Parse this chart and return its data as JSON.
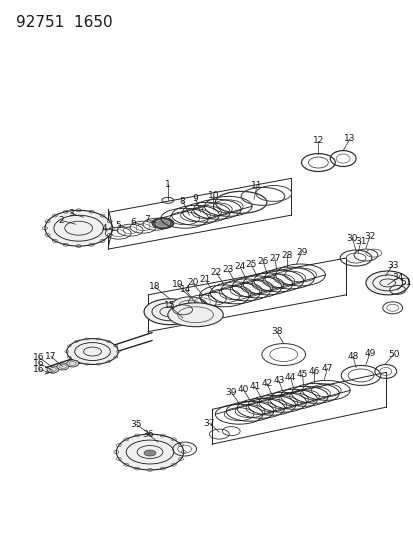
{
  "title": "92751  1650",
  "bg_color": "#ffffff",
  "fg_color": "#1a1a1a",
  "fig_width": 4.14,
  "fig_height": 5.33,
  "dpi": 100,
  "title_fontsize": 11,
  "label_fontsize": 6.5
}
